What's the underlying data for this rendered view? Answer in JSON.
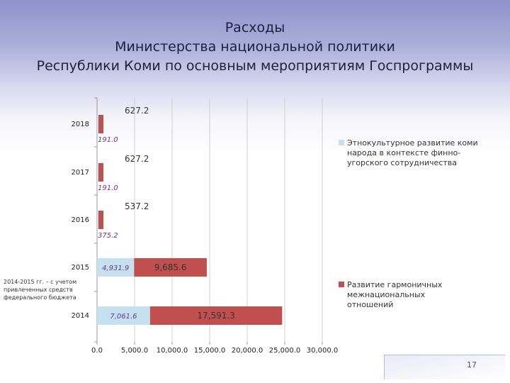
{
  "title_lines": [
    "Расходы",
    "Министерства национальной политики",
    "Республики Коми по основным мероприятиям Госпрограммы"
  ],
  "note": "2014-2015 гг. – с учетом привлеченных средств федерального бюджета",
  "page_number": "17",
  "chart_data": {
    "type": "bar",
    "orientation": "horizontal",
    "stacked": true,
    "categories": [
      "2014",
      "2015",
      "2016",
      "2017",
      "2018"
    ],
    "series": [
      {
        "name": "Этнокультурное развитие коми народа в контексте финно-угорского сотрудничества",
        "color": "#c5e0ee",
        "label_color": "#7030a0",
        "values": [
          7061.6,
          4931.9,
          375.2,
          191.0,
          191.0
        ],
        "labels": [
          "7,061.6",
          "4,931.9",
          "375.2",
          "191.0",
          "191.0"
        ]
      },
      {
        "name": "Развитие гармоничных межнациональных отношений",
        "color": "#c0504d",
        "label_color": "#333333",
        "values": [
          17591.3,
          9685.6,
          537.2,
          627.2,
          627.2
        ],
        "labels": [
          "17,591.3",
          "9,685.6",
          "537.2",
          "627.2",
          "627.2"
        ]
      }
    ],
    "xlim": [
      0,
      30000
    ],
    "x_ticks": [
      0,
      5000,
      10000,
      15000,
      20000,
      25000,
      30000
    ],
    "x_tick_labels": [
      "0.0",
      "5,000.0",
      "10,000.0",
      "15,000.0",
      "20,000.0",
      "25,000.0",
      "30,000.0"
    ],
    "grid": true,
    "legend_position": "right"
  }
}
